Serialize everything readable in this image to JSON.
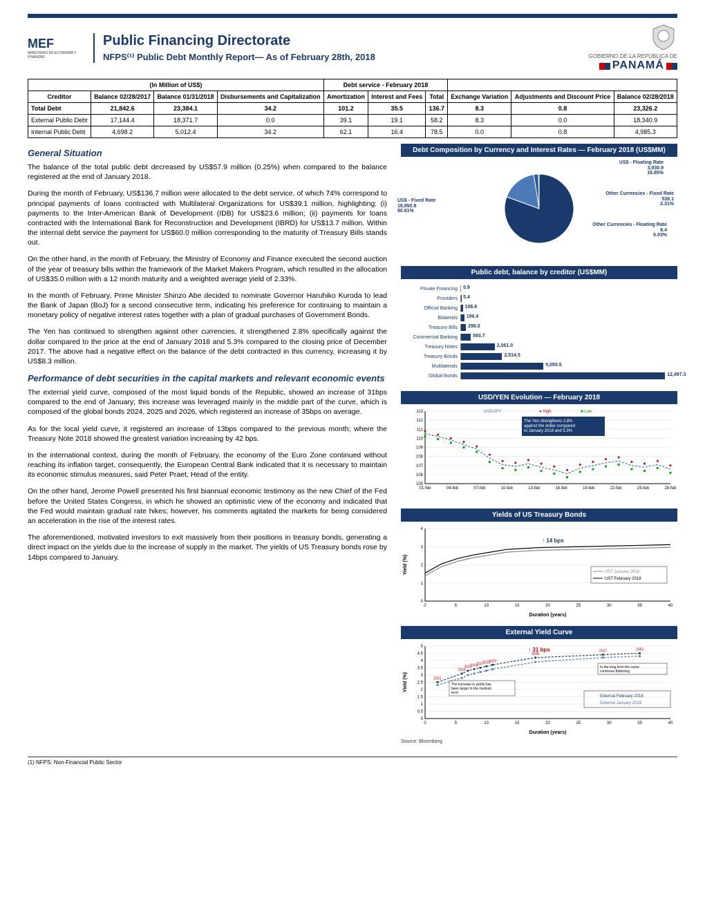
{
  "header": {
    "logo_text": "MEF",
    "logo_sub": "MINISTERIO DE ECONOMÍA Y FINANZAS",
    "title": "Public Financing Directorate",
    "subtitle": "NFPS⁽¹⁾ Public Debt Monthly Report— As of February 28th, 2018",
    "gob_text": "GOBIERNO DE LA REPÚBLICA DE",
    "panama_text": "PANAMÁ"
  },
  "table": {
    "group1_header": "(In Million of US$)",
    "group2_header": "Debt service - February 2018",
    "cols": [
      "Creditor",
      "Balance 02/28/2017",
      "Balance 01/31/2018",
      "Disbursements and Capitalization",
      "Amortization",
      "Interest and Fees",
      "Total",
      "Exchange Variation",
      "Adjustments and Discount Price",
      "Balance 02/28/2018"
    ],
    "rows": [
      [
        "Total Debt",
        "21,842.6",
        "23,384.1",
        "34.2",
        "101.2",
        "35.5",
        "136.7",
        "8.3",
        "0.8",
        "23,326.2"
      ],
      [
        "External Public Debt",
        "17,144.4",
        "18,371.7",
        "0.0",
        "39.1",
        "19.1",
        "58.2",
        "8.3",
        "0.0",
        "18,340.9"
      ],
      [
        "Internal Public Debt",
        "4,698.2",
        "5,012.4",
        "34.2",
        "62.1",
        "16.4",
        "78.5",
        "0.0",
        "0.8",
        "4,985.3"
      ]
    ]
  },
  "general": {
    "title": "General Situation",
    "p1": "The balance of the total public debt decreased by US$57.9 million (0.25%) when compared to the balance registered at the end of January 2018.",
    "p2": "During the month of February, US$136.7 million were allocated to the debt service, of which 74% correspond to principal payments of loans contracted with Multilateral Organizations for US$39.1 million, highlighting: (i) payments to the Inter-American Bank of Development (IDB) for US$23.6 million; (ii) payments for loans contracted with the International Bank for Reconstruction and Development (IBRD) for US$13.7 million. Within the internal debt service the payment for US$60.0 million corresponding to the maturity of Treasury Bills stands out.",
    "p3": "On the other hand, in the month of February, the Ministry of Economy and Finance executed the second auction of the year of treasury bills within the framework of the Market Makers Program, which resulted in the allocation of US$35.0 million with a 12 month maturity and a weighted average yield of 2.33%.",
    "p4": "In the month of February, Prime Minister Shinzo Abe decided to nominate Governor Haruhiko Kuroda to lead the Bank of Japan (BoJ) for a second consecutive term, indicating his preference for continuing to maintain a monetary policy of negative interest rates together with a plan of gradual purchases of Government Bonds.",
    "p5": "The Yen has continued to strengthen against other currencies, it strengthened 2.8% specifically against the dollar compared to the price at the end of January 2018 and 5.3% compared to the closing price of December 2017. The above had a negative effect on the balance of the debt contracted in this currency, increasing it by US$8.3 million."
  },
  "perf": {
    "title": "Performance of debt securities in the capital markets and relevant economic events",
    "p1": "The external yield curve, composed of the most liquid bonds of the Republic, showed an increase of 31bps compared to the end of January; this increase was leveraged mainly in the middle part of the curve, which is composed of the global bonds 2024, 2025 and 2026, which registered an increase of 35bps on average.",
    "p2": "As for the local yield curve, it registered an increase of 13bps compared to the previous month; where the Treasury Note 2018 showed the greatest variation increasing by 42 bps.",
    "p3": "In the international context, during the month of February, the economy of the Euro Zone continued without reaching its inflation target, consequently, the European Central Bank indicated that it is necessary to maintain its economic stimulus measures, said Peter Praet, Head of the entity.",
    "p4": "On the other hand, Jerome Powell presented his first biannual economic testimony as the new Chief of the Fed before the United States Congress, in which he showed an optimistic view of the economy and indicated that the Fed would maintain gradual rate hikes; however, his comments agitated the markets for being considered an acceleration in the rise of the interest rates.",
    "p5": "The aforementioned, motivated investors to exit massively from their positions in treasury bonds, generating a direct impact on the yields due to the increase of supply in the market. The yields of US Treasury bonds rose by 14bps compared to January."
  },
  "pie": {
    "title": "Debt Composition by Currency and Interest Rates — February 2018 (US$MM)",
    "slices": [
      {
        "label": "US$ - Fixed Rate",
        "value": "18,850.8",
        "pct": "80.81%",
        "color": "#1a3a6e",
        "angle": 290
      },
      {
        "label": "US$ - Floating Rate",
        "value": "3,930.9",
        "pct": "16.85%",
        "color": "#4a7ab8",
        "angle": 61
      },
      {
        "label": "Other Currencies - Fixed Rate",
        "value": "538.1",
        "pct": "2.31%",
        "color": "#2a5a9e",
        "angle": 8
      },
      {
        "label": "Other Currencies - Floating Rate",
        "value": "6.4",
        "pct": "0.03%",
        "color": "#888",
        "angle": 1
      }
    ]
  },
  "hbar": {
    "title": "Public debt, balance by creditor (US$MM)",
    "max": 13000,
    "bars": [
      {
        "label": "Private Financing",
        "value": 0.9
      },
      {
        "label": "Providers",
        "value": 5.4
      },
      {
        "label": "Official Banking",
        "value": 106.8
      },
      {
        "label": "Bilaterals",
        "value": 199.4
      },
      {
        "label": "Treasury Bills",
        "value": 298.0
      },
      {
        "label": "Commercial Banking",
        "value": 593.7
      },
      {
        "label": "Treasury Notes",
        "value": 2061.0
      },
      {
        "label": "Treasury Bonds",
        "value": 2514.5
      },
      {
        "label": "Multilaterals",
        "value": 5050.5
      },
      {
        "label": "Global Bonds",
        "value": 12497.3
      }
    ],
    "bar_color": "#1a3a6e"
  },
  "usdyen": {
    "title": "USD/YEN Evolution — February 2018",
    "ylim": [
      105,
      113
    ],
    "yticks": [
      105,
      106,
      107,
      108,
      109,
      110,
      111,
      112,
      113
    ],
    "xlabels": [
      "01-feb",
      "04-feb",
      "07-feb",
      "10-feb",
      "13-feb",
      "16-feb",
      "19-feb",
      "22-feb",
      "25-feb",
      "28-feb"
    ],
    "series": [
      110.5,
      110.2,
      109.8,
      109.3,
      108.8,
      107.8,
      107.1,
      106.9,
      107.2,
      106.8,
      106.5,
      106.1,
      106.7,
      107.0,
      107.3,
      107.5,
      107.0,
      106.8,
      107.1,
      106.6
    ],
    "high": [
      110.8,
      110.4,
      110.0,
      109.6,
      109.1,
      108.2,
      107.5,
      107.3,
      107.6,
      107.2,
      106.9,
      106.5,
      107.1,
      107.4,
      107.7,
      107.9,
      107.4,
      107.2,
      107.5,
      107.0
    ],
    "low": [
      110.2,
      109.9,
      109.5,
      109.0,
      108.5,
      107.4,
      106.7,
      106.5,
      106.8,
      106.4,
      106.1,
      105.7,
      106.3,
      106.6,
      106.9,
      107.1,
      106.6,
      106.4,
      106.7,
      106.2
    ],
    "line_color": "#4a7ab8",
    "high_color": "#c00",
    "low_color": "#0a0",
    "annotation": "The Yen strengthens 2.8% against the dollar compared to January 2018 and 5.3%",
    "legend": [
      "USD/JPY",
      "High",
      "Low"
    ]
  },
  "ust": {
    "title": "Yields of US Treasury Bonds",
    "ylim": [
      0,
      4
    ],
    "yticks": [
      0,
      1,
      2,
      3,
      4
    ],
    "xlim": [
      0,
      40
    ],
    "xticks": [
      0,
      5,
      10,
      15,
      20,
      25,
      30,
      35,
      40
    ],
    "xlabel": "Duration (years)",
    "ylabel": "Yield (%)",
    "annotation": "↑ 14 bps",
    "legend": [
      "UST January 2018",
      "UST February 2018"
    ],
    "jan": [
      1.4,
      1.9,
      2.2,
      2.4,
      2.55,
      2.7,
      2.75,
      2.8,
      2.82,
      2.84,
      2.86,
      2.88,
      2.9,
      2.92,
      2.94,
      2.96
    ],
    "feb": [
      1.55,
      2.05,
      2.35,
      2.55,
      2.7,
      2.85,
      2.9,
      2.95,
      2.97,
      2.99,
      3.01,
      3.03,
      3.05,
      3.07,
      3.09,
      3.11
    ],
    "jan_color": "#888",
    "feb_color": "#000"
  },
  "ext": {
    "title": "External Yield Curve",
    "ylim": [
      0,
      5
    ],
    "yticks": [
      0,
      0.5,
      1,
      1.5,
      2,
      2.5,
      3,
      3.5,
      4,
      4.5,
      5
    ],
    "xlim": [
      0,
      40
    ],
    "xticks": [
      0,
      5,
      10,
      15,
      20,
      25,
      30,
      35,
      40
    ],
    "xlabel": "Duration (years)",
    "ylabel": "Yield (%)",
    "legend": [
      "External February 2018",
      "External January 2018"
    ],
    "annotation1": "↑ 31 bps",
    "annotation2": "The increase in yields has been larger in the medium term",
    "annotation3": "In the long term the curve continues flattening",
    "years": [
      "2020",
      "2024",
      "2025",
      "2026",
      "2027",
      "2028",
      "2029",
      "2036",
      "2047",
      "2053"
    ],
    "jan": [
      2.3,
      2.8,
      3.0,
      3.1,
      3.2,
      3.3,
      3.4,
      3.9,
      4.2,
      4.3
    ],
    "feb": [
      2.5,
      3.1,
      3.3,
      3.4,
      3.5,
      3.6,
      3.7,
      4.2,
      4.4,
      4.5
    ],
    "jan_color": "#4a7ab8",
    "feb_color": "#1a3a6e"
  },
  "source": "Source: Bloomberg",
  "footnote": "(1) NFPS: Non-Financial Public Sector"
}
